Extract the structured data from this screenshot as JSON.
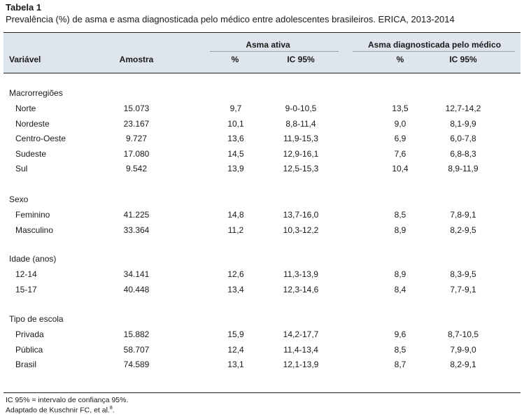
{
  "title": "Tabela 1",
  "subtitle": "Prevalência (%) de asma e asma diagnosticada pelo médico entre adolescentes brasileiros. ERICA, 2013-2014",
  "header": {
    "variavel": "Variável",
    "amostra": "Amostra",
    "group_asma_ativa": "Asma ativa",
    "group_asma_diag": "Asma diagnosticada pelo médico",
    "pct": "%",
    "ic": "IC 95%"
  },
  "sections": [
    {
      "label": "Macrorregiões",
      "rows": [
        {
          "variavel": "Norte",
          "amostra": "15.073",
          "aa_pct": "9,7",
          "aa_ic": "9-0-10,5",
          "ad_pct": "13,5",
          "ad_ic": "12,7-14,2"
        },
        {
          "variavel": "Nordeste",
          "amostra": "23.167",
          "aa_pct": "10,1",
          "aa_ic": "8,8-11,4",
          "ad_pct": "9,0",
          "ad_ic": "8,1-9,9"
        },
        {
          "variavel": "Centro-Oeste",
          "amostra": "9.727",
          "aa_pct": "13,6",
          "aa_ic": "11,9-15,3",
          "ad_pct": "6,9",
          "ad_ic": "6,0-7,8"
        },
        {
          "variavel": "Sudeste",
          "amostra": "17.080",
          "aa_pct": "14,5",
          "aa_ic": "12,9-16,1",
          "ad_pct": "7,6",
          "ad_ic": "6,8-8,3"
        },
        {
          "variavel": "Sul",
          "amostra": "9.542",
          "aa_pct": "13,9",
          "aa_ic": "12,5-15,3",
          "ad_pct": "10,4",
          "ad_ic": "8,9-11,9"
        }
      ]
    },
    {
      "label": "Sexo",
      "rows": [
        {
          "variavel": "Feminino",
          "amostra": "41.225",
          "aa_pct": "14,8",
          "aa_ic": "13,7-16,0",
          "ad_pct": "8,5",
          "ad_ic": "7,8-9,1"
        },
        {
          "variavel": "Masculino",
          "amostra": "33.364",
          "aa_pct": "11,2",
          "aa_ic": "10,3-12,2",
          "ad_pct": "8,9",
          "ad_ic": "8,2-9,5"
        }
      ]
    },
    {
      "label": "Idade (anos)",
      "rows": [
        {
          "variavel": "12-14",
          "amostra": "34.141",
          "aa_pct": "12,6",
          "aa_ic": "11,3-13,9",
          "ad_pct": "8,9",
          "ad_ic": "8,3-9,5"
        },
        {
          "variavel": "15-17",
          "amostra": "40.448",
          "aa_pct": "13,4",
          "aa_ic": "12,3-14,6",
          "ad_pct": "8,4",
          "ad_ic": "7,7-9,1"
        }
      ]
    },
    {
      "label": "Tipo de escola",
      "rows": [
        {
          "variavel": "Privada",
          "amostra": "15.882",
          "aa_pct": "15,9",
          "aa_ic": "14,2-17,7",
          "ad_pct": "9,6",
          "ad_ic": "8,7-10,5"
        },
        {
          "variavel": "Pública",
          "amostra": "58.707",
          "aa_pct": "12,4",
          "aa_ic": "11,4-13,4",
          "ad_pct": "8,5",
          "ad_ic": "7,9-9,0"
        },
        {
          "variavel": "Brasil",
          "amostra": "74.589",
          "aa_pct": "13,1",
          "aa_ic": "12,1-13,9",
          "ad_pct": "8,7",
          "ad_ic": "8,2-9,1"
        }
      ]
    }
  ],
  "footnote_1": "IC 95% = intervalo de confiança 95%.",
  "footnote_2": "Adaptado de Kuschnir FC, et al.",
  "footnote_2_ref": "8",
  "footnote_2_end": "."
}
